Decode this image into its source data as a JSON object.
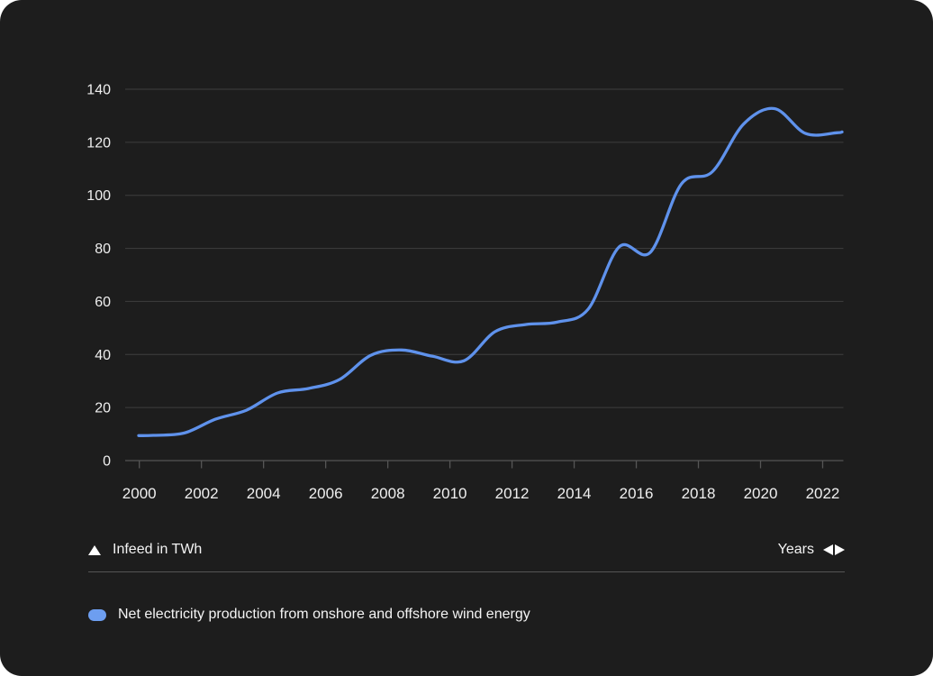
{
  "colors": {
    "background": "#1d1d1d",
    "grid": "#3e3e3e",
    "axis": "#565656",
    "tick_label": "#efefef",
    "footer_text": "#f4f4f4",
    "line": "#5f92ec",
    "legend_marker": "#6d9ef0"
  },
  "chart_data": {
    "type": "line",
    "title": "",
    "xlabel": "Years",
    "ylabel": "Infeed in TWh",
    "x": [
      2000,
      2001,
      2002,
      2003,
      2004,
      2005,
      2006,
      2007,
      2008,
      2009,
      2010,
      2011,
      2012,
      2013,
      2014,
      2015,
      2016,
      2017,
      2018,
      2019,
      2020,
      2021,
      2022
    ],
    "series": [
      {
        "name": "Net electricity production from onshore and offshore wind energy",
        "color": "#5f92ec",
        "values": [
          9.5,
          10.4,
          15.6,
          19.0,
          25.5,
          27.2,
          30.6,
          39.7,
          41.7,
          39.3,
          37.6,
          48.6,
          51.3,
          52.2,
          57.1,
          80.6,
          78.5,
          104.3,
          108.9,
          126.8,
          132.7,
          123.3,
          123.6
        ]
      }
    ],
    "ylim": [
      0,
      140
    ],
    "yticks": [
      0,
      20,
      40,
      60,
      80,
      100,
      120,
      140
    ],
    "xticks": [
      2000,
      2002,
      2004,
      2006,
      2008,
      2010,
      2012,
      2014,
      2016,
      2018,
      2020,
      2022
    ],
    "grid": true,
    "legend_position": "bottom"
  },
  "footer": {
    "y_axis_icon": "triangle-up",
    "x_axis_icons": "triangle-left-right"
  }
}
